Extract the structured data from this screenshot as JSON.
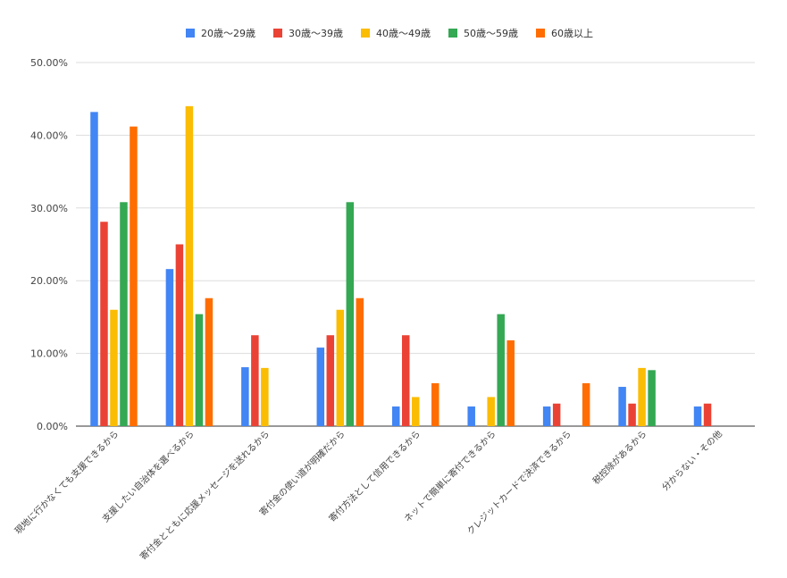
{
  "chart_data": {
    "type": "bar",
    "title": "",
    "xlabel": "",
    "ylabel": "",
    "ylim": [
      0,
      50
    ],
    "yticks": [
      "0.00%",
      "10.00%",
      "20.00%",
      "30.00%",
      "40.00%",
      "50.00%"
    ],
    "grid": true,
    "legend_position": "top",
    "categories": [
      "現地に行かなくても支援できるから",
      "支援したい自治体を選べるから",
      "寄付金とともに応援メッセージを送れるから",
      "寄付金の使い道が明確だから",
      "寄付方法として信用できるから",
      "ネットで簡単に寄付できるから",
      "クレジットカードで決済できるから",
      "税控除があるから",
      "分からない・その他"
    ],
    "series": [
      {
        "name": "20歳〜29歳",
        "color": "#4285f4",
        "values": [
          43.2,
          21.6,
          8.1,
          10.8,
          2.7,
          2.7,
          2.7,
          5.4,
          2.7
        ]
      },
      {
        "name": "30歳〜39歳",
        "color": "#ea4335",
        "values": [
          28.1,
          25.0,
          12.5,
          12.5,
          12.5,
          0,
          3.1,
          3.1,
          3.1
        ]
      },
      {
        "name": "40歳〜49歳",
        "color": "#fbbc04",
        "values": [
          16.0,
          44.0,
          8.0,
          16.0,
          4.0,
          4.0,
          0,
          8.0,
          0
        ]
      },
      {
        "name": "50歳〜59歳",
        "color": "#34a853",
        "values": [
          30.8,
          15.4,
          0,
          30.8,
          0,
          15.4,
          0,
          7.7,
          0
        ]
      },
      {
        "name": "60歳以上",
        "color": "#ff6d01",
        "values": [
          41.2,
          17.6,
          0,
          17.6,
          5.9,
          11.8,
          5.9,
          0,
          0
        ]
      }
    ]
  }
}
